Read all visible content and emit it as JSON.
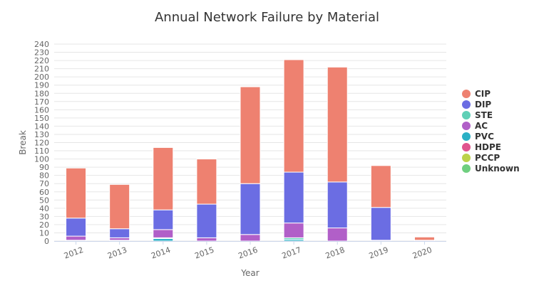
{
  "chart_data": {
    "type": "bar",
    "stacked": true,
    "title": "Annual Network Failure by Material",
    "xlabel": "Year",
    "ylabel": "Break",
    "ylim": [
      0,
      240
    ],
    "ytick_step": 10,
    "grid": true,
    "legend_position": "right",
    "categories": [
      "2012",
      "2013",
      "2014",
      "2015",
      "2016",
      "2017",
      "2018",
      "2019",
      "2020"
    ],
    "series": [
      {
        "name": "Unknown",
        "color": "#6fcf7f",
        "values": [
          0,
          0,
          0,
          0,
          0,
          0,
          0,
          0,
          0
        ]
      },
      {
        "name": "PCCP",
        "color": "#bcd24a",
        "values": [
          0,
          0,
          0,
          0,
          0,
          0,
          0,
          0,
          0
        ]
      },
      {
        "name": "HDPE",
        "color": "#e0548e",
        "values": [
          0,
          0,
          0,
          0,
          0,
          0,
          0,
          0,
          0
        ]
      },
      {
        "name": "PVC",
        "color": "#2bb0c5",
        "values": [
          1,
          1,
          3,
          0,
          0,
          2,
          0,
          0,
          0
        ]
      },
      {
        "name": "STE",
        "color": "#5fd0b6",
        "values": [
          0,
          0,
          1,
          0,
          0,
          2,
          0,
          0,
          0
        ]
      },
      {
        "name": "AC",
        "color": "#b15fc8",
        "values": [
          5,
          3,
          10,
          4,
          8,
          18,
          16,
          1,
          0
        ]
      },
      {
        "name": "DIP",
        "color": "#6b6de3",
        "values": [
          22,
          11,
          24,
          41,
          62,
          62,
          56,
          40,
          1
        ]
      },
      {
        "name": "CIP",
        "color": "#ee8170",
        "values": [
          61,
          54,
          76,
          55,
          118,
          137,
          140,
          51,
          4
        ]
      }
    ],
    "legend_order": [
      "CIP",
      "DIP",
      "STE",
      "AC",
      "PVC",
      "HDPE",
      "PCCP",
      "Unknown"
    ]
  }
}
